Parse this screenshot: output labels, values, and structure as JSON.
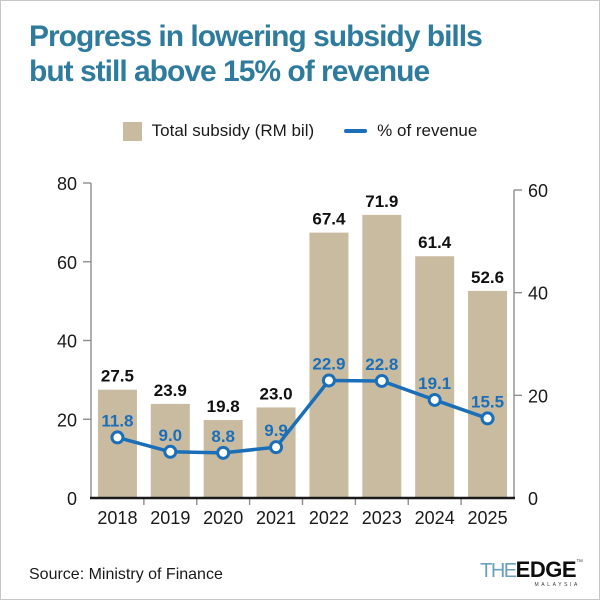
{
  "title": {
    "line1": "Progress in lowering subsidy bills",
    "line2": "but still above 15% of revenue",
    "color": "#2e7b9e"
  },
  "legend": {
    "bar_label": "Total subsidy (RM bil)",
    "line_label": "% of revenue"
  },
  "chart_data": {
    "type": "bar",
    "title": "Progress in lowering subsidy bills but still above 15% of revenue",
    "categories": [
      "2018",
      "2019",
      "2020",
      "2021",
      "2022",
      "2023",
      "2024",
      "2025"
    ],
    "series": [
      {
        "name": "Total subsidy (RM bil)",
        "type": "bar",
        "axis": "left",
        "color": "#c9bb9f",
        "values": [
          27.5,
          23.9,
          19.8,
          23.0,
          67.4,
          71.9,
          61.4,
          52.6
        ]
      },
      {
        "name": "% of revenue",
        "type": "line",
        "axis": "right",
        "color": "#1b6fb8",
        "values": [
          11.8,
          9.0,
          8.8,
          9.9,
          22.9,
          22.8,
          19.1,
          15.5
        ]
      }
    ],
    "left_axis": {
      "range": [
        0,
        80
      ],
      "ticks": [
        0,
        20,
        40,
        60,
        80
      ]
    },
    "right_axis": {
      "range": [
        0,
        60
      ],
      "ticks": [
        0,
        20,
        40,
        60
      ]
    },
    "grid": false,
    "legend_position": "top"
  },
  "source": "Source: Ministry of Finance",
  "logo": {
    "the": "THE",
    "edge": "EDGE",
    "tm": "™",
    "country": "MALAYSIA"
  },
  "colors": {
    "bar": "#c9bb9f",
    "line": "#1b6fb8",
    "axis": "#8f8f8f",
    "baseline": "#1a1a1a",
    "text": "#1a1a1a",
    "title": "#2e7b9e"
  }
}
